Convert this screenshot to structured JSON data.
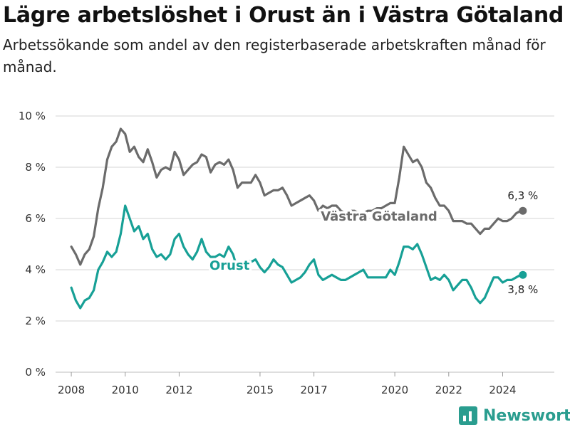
{
  "page": {
    "title": "Lägre arbetslöshet i Orust än i Västra Götaland",
    "subtitle": "Arbetssökande som andel av den registerbaserade arbetskraften månad för månad."
  },
  "brand": {
    "name": "Newsworthy",
    "logo_icon": "bar-chart-icon",
    "color": "#2a9d8f"
  },
  "chart_data": {
    "type": "line",
    "title": "",
    "xlabel": "",
    "ylabel": "",
    "x_tick_labels": [
      "2008",
      "2010",
      "2012",
      "2015",
      "2017",
      "2020",
      "2022",
      "2024"
    ],
    "y_tick_labels": [
      "0 %",
      "2 %",
      "4 %",
      "6 %",
      "8 %",
      "10 %"
    ],
    "xlim": [
      "2007-06",
      "2025-12"
    ],
    "ylim": [
      0,
      10
    ],
    "grid": true,
    "legend": "inline labels",
    "series": [
      {
        "name": "Västra Götaland",
        "color": "#6b6b6b",
        "end_label": "6,3 %",
        "points": [
          [
            "2008-01",
            4.9
          ],
          [
            "2008-03",
            4.6
          ],
          [
            "2008-05",
            4.2
          ],
          [
            "2008-07",
            4.6
          ],
          [
            "2008-09",
            4.8
          ],
          [
            "2008-11",
            5.3
          ],
          [
            "2009-01",
            6.4
          ],
          [
            "2009-03",
            7.2
          ],
          [
            "2009-05",
            8.3
          ],
          [
            "2009-07",
            8.8
          ],
          [
            "2009-09",
            9.0
          ],
          [
            "2009-11",
            9.5
          ],
          [
            "2010-01",
            9.3
          ],
          [
            "2010-03",
            8.6
          ],
          [
            "2010-05",
            8.8
          ],
          [
            "2010-07",
            8.4
          ],
          [
            "2010-09",
            8.2
          ],
          [
            "2010-11",
            8.7
          ],
          [
            "2011-01",
            8.2
          ],
          [
            "2011-03",
            7.6
          ],
          [
            "2011-05",
            7.9
          ],
          [
            "2011-07",
            8.0
          ],
          [
            "2011-09",
            7.9
          ],
          [
            "2011-11",
            8.6
          ],
          [
            "2012-01",
            8.3
          ],
          [
            "2012-03",
            7.7
          ],
          [
            "2012-05",
            7.9
          ],
          [
            "2012-07",
            8.1
          ],
          [
            "2012-09",
            8.2
          ],
          [
            "2012-11",
            8.5
          ],
          [
            "2013-01",
            8.4
          ],
          [
            "2013-03",
            7.8
          ],
          [
            "2013-05",
            8.1
          ],
          [
            "2013-07",
            8.2
          ],
          [
            "2013-09",
            8.1
          ],
          [
            "2013-11",
            8.3
          ],
          [
            "2014-01",
            7.9
          ],
          [
            "2014-03",
            7.2
          ],
          [
            "2014-05",
            7.4
          ],
          [
            "2014-07",
            7.4
          ],
          [
            "2014-09",
            7.4
          ],
          [
            "2014-11",
            7.7
          ],
          [
            "2015-01",
            7.4
          ],
          [
            "2015-03",
            6.9
          ],
          [
            "2015-05",
            7.0
          ],
          [
            "2015-07",
            7.1
          ],
          [
            "2015-09",
            7.1
          ],
          [
            "2015-11",
            7.2
          ],
          [
            "2016-01",
            6.9
          ],
          [
            "2016-03",
            6.5
          ],
          [
            "2016-05",
            6.6
          ],
          [
            "2016-07",
            6.7
          ],
          [
            "2016-09",
            6.8
          ],
          [
            "2016-11",
            6.9
          ],
          [
            "2017-01",
            6.7
          ],
          [
            "2017-03",
            6.3
          ],
          [
            "2017-05",
            6.5
          ],
          [
            "2017-07",
            6.4
          ],
          [
            "2017-09",
            6.5
          ],
          [
            "2017-11",
            6.5
          ],
          [
            "2018-01",
            6.3
          ],
          [
            "2018-03",
            6.2
          ],
          [
            "2018-05",
            6.3
          ],
          [
            "2018-07",
            6.3
          ],
          [
            "2018-09",
            6.2
          ],
          [
            "2018-11",
            6.2
          ],
          [
            "2019-01",
            6.3
          ],
          [
            "2019-03",
            6.3
          ],
          [
            "2019-05",
            6.4
          ],
          [
            "2019-07",
            6.4
          ],
          [
            "2019-09",
            6.5
          ],
          [
            "2019-11",
            6.6
          ],
          [
            "2020-01",
            6.6
          ],
          [
            "2020-03",
            7.6
          ],
          [
            "2020-05",
            8.8
          ],
          [
            "2020-07",
            8.5
          ],
          [
            "2020-09",
            8.2
          ],
          [
            "2020-11",
            8.3
          ],
          [
            "2021-01",
            8.0
          ],
          [
            "2021-03",
            7.4
          ],
          [
            "2021-05",
            7.2
          ],
          [
            "2021-07",
            6.8
          ],
          [
            "2021-09",
            6.5
          ],
          [
            "2021-11",
            6.5
          ],
          [
            "2022-01",
            6.3
          ],
          [
            "2022-03",
            5.9
          ],
          [
            "2022-05",
            5.9
          ],
          [
            "2022-07",
            5.9
          ],
          [
            "2022-09",
            5.8
          ],
          [
            "2022-11",
            5.8
          ],
          [
            "2023-01",
            5.6
          ],
          [
            "2023-03",
            5.4
          ],
          [
            "2023-05",
            5.6
          ],
          [
            "2023-07",
            5.6
          ],
          [
            "2023-09",
            5.8
          ],
          [
            "2023-11",
            6.0
          ],
          [
            "2024-01",
            5.9
          ],
          [
            "2024-03",
            5.9
          ],
          [
            "2024-05",
            6.0
          ],
          [
            "2024-07",
            6.2
          ],
          [
            "2024-09",
            6.3
          ],
          [
            "2024-10",
            6.3
          ]
        ]
      },
      {
        "name": "Orust",
        "color": "#17a096",
        "end_label": "3,8 %",
        "points": [
          [
            "2008-01",
            3.3
          ],
          [
            "2008-03",
            2.8
          ],
          [
            "2008-05",
            2.5
          ],
          [
            "2008-07",
            2.8
          ],
          [
            "2008-09",
            2.9
          ],
          [
            "2008-11",
            3.2
          ],
          [
            "2009-01",
            4.0
          ],
          [
            "2009-03",
            4.3
          ],
          [
            "2009-05",
            4.7
          ],
          [
            "2009-07",
            4.5
          ],
          [
            "2009-09",
            4.7
          ],
          [
            "2009-11",
            5.4
          ],
          [
            "2010-01",
            6.5
          ],
          [
            "2010-03",
            6.0
          ],
          [
            "2010-05",
            5.5
          ],
          [
            "2010-07",
            5.7
          ],
          [
            "2010-09",
            5.2
          ],
          [
            "2010-11",
            5.4
          ],
          [
            "2011-01",
            4.8
          ],
          [
            "2011-03",
            4.5
          ],
          [
            "2011-05",
            4.6
          ],
          [
            "2011-07",
            4.4
          ],
          [
            "2011-09",
            4.6
          ],
          [
            "2011-11",
            5.2
          ],
          [
            "2012-01",
            5.4
          ],
          [
            "2012-03",
            4.9
          ],
          [
            "2012-05",
            4.6
          ],
          [
            "2012-07",
            4.4
          ],
          [
            "2012-09",
            4.7
          ],
          [
            "2012-11",
            5.2
          ],
          [
            "2013-01",
            4.7
          ],
          [
            "2013-03",
            4.5
          ],
          [
            "2013-05",
            4.5
          ],
          [
            "2013-07",
            4.6
          ],
          [
            "2013-09",
            4.5
          ],
          [
            "2013-11",
            4.9
          ],
          [
            "2014-01",
            4.6
          ],
          [
            "2014-03",
            4.0
          ],
          [
            "2014-05",
            4.3
          ],
          [
            "2014-07",
            4.4
          ],
          [
            "2014-09",
            4.3
          ],
          [
            "2014-11",
            4.4
          ],
          [
            "2015-01",
            4.1
          ],
          [
            "2015-03",
            3.9
          ],
          [
            "2015-05",
            4.1
          ],
          [
            "2015-07",
            4.4
          ],
          [
            "2015-09",
            4.2
          ],
          [
            "2015-11",
            4.1
          ],
          [
            "2016-01",
            3.8
          ],
          [
            "2016-03",
            3.5
          ],
          [
            "2016-05",
            3.6
          ],
          [
            "2016-07",
            3.7
          ],
          [
            "2016-09",
            3.9
          ],
          [
            "2016-11",
            4.2
          ],
          [
            "2017-01",
            4.4
          ],
          [
            "2017-03",
            3.8
          ],
          [
            "2017-05",
            3.6
          ],
          [
            "2017-07",
            3.7
          ],
          [
            "2017-09",
            3.8
          ],
          [
            "2017-11",
            3.7
          ],
          [
            "2018-01",
            3.6
          ],
          [
            "2018-03",
            3.6
          ],
          [
            "2018-05",
            3.7
          ],
          [
            "2018-07",
            3.8
          ],
          [
            "2018-09",
            3.9
          ],
          [
            "2018-11",
            4.0
          ],
          [
            "2019-01",
            3.7
          ],
          [
            "2019-03",
            3.7
          ],
          [
            "2019-05",
            3.7
          ],
          [
            "2019-07",
            3.7
          ],
          [
            "2019-09",
            3.7
          ],
          [
            "2019-11",
            4.0
          ],
          [
            "2020-01",
            3.8
          ],
          [
            "2020-03",
            4.3
          ],
          [
            "2020-05",
            4.9
          ],
          [
            "2020-07",
            4.9
          ],
          [
            "2020-09",
            4.8
          ],
          [
            "2020-11",
            5.0
          ],
          [
            "2021-01",
            4.6
          ],
          [
            "2021-03",
            4.1
          ],
          [
            "2021-05",
            3.6
          ],
          [
            "2021-07",
            3.7
          ],
          [
            "2021-09",
            3.6
          ],
          [
            "2021-11",
            3.8
          ],
          [
            "2022-01",
            3.6
          ],
          [
            "2022-03",
            3.2
          ],
          [
            "2022-05",
            3.4
          ],
          [
            "2022-07",
            3.6
          ],
          [
            "2022-09",
            3.6
          ],
          [
            "2022-11",
            3.3
          ],
          [
            "2023-01",
            2.9
          ],
          [
            "2023-03",
            2.7
          ],
          [
            "2023-05",
            2.9
          ],
          [
            "2023-07",
            3.3
          ],
          [
            "2023-09",
            3.7
          ],
          [
            "2023-11",
            3.7
          ],
          [
            "2024-01",
            3.5
          ],
          [
            "2024-03",
            3.6
          ],
          [
            "2024-05",
            3.6
          ],
          [
            "2024-07",
            3.7
          ],
          [
            "2024-09",
            3.8
          ],
          [
            "2024-10",
            3.8
          ]
        ]
      }
    ]
  }
}
